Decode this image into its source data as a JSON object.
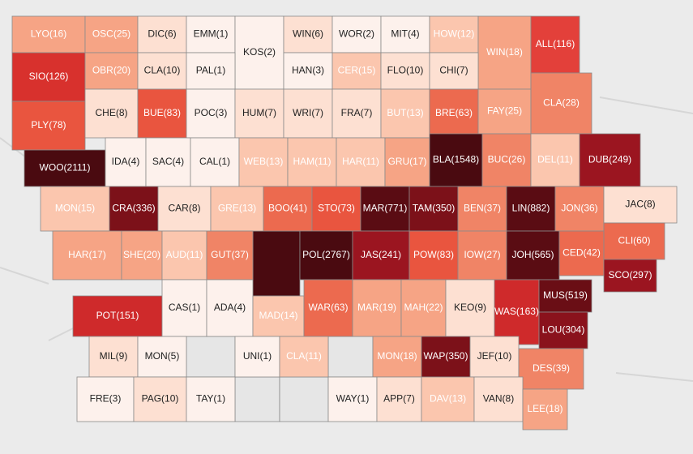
{
  "counties": [
    {
      "label": "LYO(16)",
      "fill": "#f6a485"
    },
    {
      "label": "OSC(25)",
      "fill": "#f6a485"
    },
    {
      "label": "DIC(6)",
      "fill": "#fde0d2"
    },
    {
      "label": "EMM(1)",
      "fill": "#fdf1ec"
    },
    {
      "label": "KOS(2)",
      "fill": "#fdf1ec"
    },
    {
      "label": "WIN(6)",
      "fill": "#fde0d2"
    },
    {
      "label": "WOR(2)",
      "fill": "#fdf1ec"
    },
    {
      "label": "MIT(4)",
      "fill": "#fdf1ec"
    },
    {
      "label": "HOW(12)",
      "fill": "#fbc6ae"
    },
    {
      "label": "WIN(18)",
      "fill": "#f6a485"
    },
    {
      "label": "ALL(116)",
      "fill": "#e3403a"
    },
    {
      "label": "SIO(126)",
      "fill": "#d8312d"
    },
    {
      "label": "OBR(20)",
      "fill": "#f6a485"
    },
    {
      "label": "CLA(10)",
      "fill": "#fde0d2"
    },
    {
      "label": "PAL(1)",
      "fill": "#fdf1ec"
    },
    {
      "label": "HAN(3)",
      "fill": "#fdf1ec"
    },
    {
      "label": "CER(15)",
      "fill": "#fbc6ae"
    },
    {
      "label": "FLO(10)",
      "fill": "#fde0d2"
    },
    {
      "label": "CHI(7)",
      "fill": "#fde0d2"
    },
    {
      "label": "PLY(78)",
      "fill": "#e9553f"
    },
    {
      "label": "CHE(8)",
      "fill": "#fde0d2"
    },
    {
      "label": "BUE(83)",
      "fill": "#e9553f"
    },
    {
      "label": "POC(3)",
      "fill": "#fdf1ec"
    },
    {
      "label": "HUM(7)",
      "fill": "#fde0d2"
    },
    {
      "label": "WRI(7)",
      "fill": "#fde0d2"
    },
    {
      "label": "FRA(7)",
      "fill": "#fde0d2"
    },
    {
      "label": "BUT(13)",
      "fill": "#fbc6ae"
    },
    {
      "label": "BRE(63)",
      "fill": "#ec6a4f"
    },
    {
      "label": "FAY(25)",
      "fill": "#f6a485"
    },
    {
      "label": "CLA(28)",
      "fill": "#f08466"
    },
    {
      "label": "WOO(2111)",
      "fill": "#4a0a10"
    },
    {
      "label": "IDA(4)",
      "fill": "#fdf1ec"
    },
    {
      "label": "SAC(4)",
      "fill": "#fdf1ec"
    },
    {
      "label": "CAL(1)",
      "fill": "#fdf1ec"
    },
    {
      "label": "WEB(13)",
      "fill": "#fbc6ae"
    },
    {
      "label": "HAM(11)",
      "fill": "#fbc6ae"
    },
    {
      "label": "HAR(11)",
      "fill": "#fbc6ae"
    },
    {
      "label": "GRU(17)",
      "fill": "#f6a485"
    },
    {
      "label": "BLA(1548)",
      "fill": "#4a0a10"
    },
    {
      "label": "BUC(26)",
      "fill": "#f08466"
    },
    {
      "label": "DEL(11)",
      "fill": "#fbc6ae"
    },
    {
      "label": "DUB(249)",
      "fill": "#9b1520"
    },
    {
      "label": "MON(15)",
      "fill": "#fbc6ae"
    },
    {
      "label": "CRA(336)",
      "fill": "#7c1119"
    },
    {
      "label": "CAR(8)",
      "fill": "#fde0d2"
    },
    {
      "label": "GRE(13)",
      "fill": "#fbc6ae"
    },
    {
      "label": "BOO(41)",
      "fill": "#ec6a4f"
    },
    {
      "label": "STO(73)",
      "fill": "#e9553f"
    },
    {
      "label": "MAR(771)",
      "fill": "#5a0c13"
    },
    {
      "label": "TAM(350)",
      "fill": "#7c1119"
    },
    {
      "label": "BEN(37)",
      "fill": "#f08466"
    },
    {
      "label": "LIN(882)",
      "fill": "#5a0c13"
    },
    {
      "label": "JON(36)",
      "fill": "#f08466"
    },
    {
      "label": "JAC(8)",
      "fill": "#fde0d2"
    },
    {
      "label": "HAR(17)",
      "fill": "#f6a485"
    },
    {
      "label": "SHE(20)",
      "fill": "#f6a485"
    },
    {
      "label": "AUD(11)",
      "fill": "#fbc6ae"
    },
    {
      "label": "GUT(37)",
      "fill": "#f08466"
    },
    {
      "label": "POL(2767)",
      "fill": "#4a0a10"
    },
    {
      "label": "JAS(241)",
      "fill": "#9b1520"
    },
    {
      "label": "POW(83)",
      "fill": "#e9553f"
    },
    {
      "label": "IOW(27)",
      "fill": "#f08466"
    },
    {
      "label": "JOH(565)",
      "fill": "#5a0c13"
    },
    {
      "label": "CED(42)",
      "fill": "#ec6a4f"
    },
    {
      "label": "CLI(60)",
      "fill": "#ec6a4f"
    },
    {
      "label": "SCO(297)",
      "fill": "#9b1520"
    },
    {
      "label": "POT(151)",
      "fill": "#cf2a2b"
    },
    {
      "label": "CAS(1)",
      "fill": "#fdf1ec"
    },
    {
      "label": "ADA(4)",
      "fill": "#fdf1ec"
    },
    {
      "label": "MAD(14)",
      "fill": "#fbc6ae"
    },
    {
      "label": "WAR(63)",
      "fill": "#ec6a4f"
    },
    {
      "label": "MAR(19)",
      "fill": "#f6a485"
    },
    {
      "label": "MAH(22)",
      "fill": "#f6a485"
    },
    {
      "label": "KEO(9)",
      "fill": "#fde0d2"
    },
    {
      "label": "WAS(163)",
      "fill": "#cf2a2b"
    },
    {
      "label": "MUS(519)",
      "fill": "#6a0e15"
    },
    {
      "label": "LOU(304)",
      "fill": "#8a121c"
    },
    {
      "label": "MIL(9)",
      "fill": "#fde0d2"
    },
    {
      "label": "MON(5)",
      "fill": "#fdf1ec"
    },
    {
      "label": "UNI(1)",
      "fill": "#fdf1ec"
    },
    {
      "label": "CLA(11)",
      "fill": "#fbc6ae"
    },
    {
      "label": "MON(18)",
      "fill": "#f6a485"
    },
    {
      "label": "WAP(350)",
      "fill": "#7c1119"
    },
    {
      "label": "JEF(10)",
      "fill": "#fde0d2"
    },
    {
      "label": "DES(39)",
      "fill": "#f08466"
    },
    {
      "label": "FRE(3)",
      "fill": "#fdf1ec"
    },
    {
      "label": "PAG(10)",
      "fill": "#fde0d2"
    },
    {
      "label": "TAY(1)",
      "fill": "#fdf1ec"
    },
    {
      "label": "WAY(1)",
      "fill": "#fdf1ec"
    },
    {
      "label": "APP(7)",
      "fill": "#fde0d2"
    },
    {
      "label": "DAV(13)",
      "fill": "#fbc6ae"
    },
    {
      "label": "VAN(8)",
      "fill": "#fde0d2"
    },
    {
      "label": "LEE(18)",
      "fill": "#f6a485"
    }
  ]
}
